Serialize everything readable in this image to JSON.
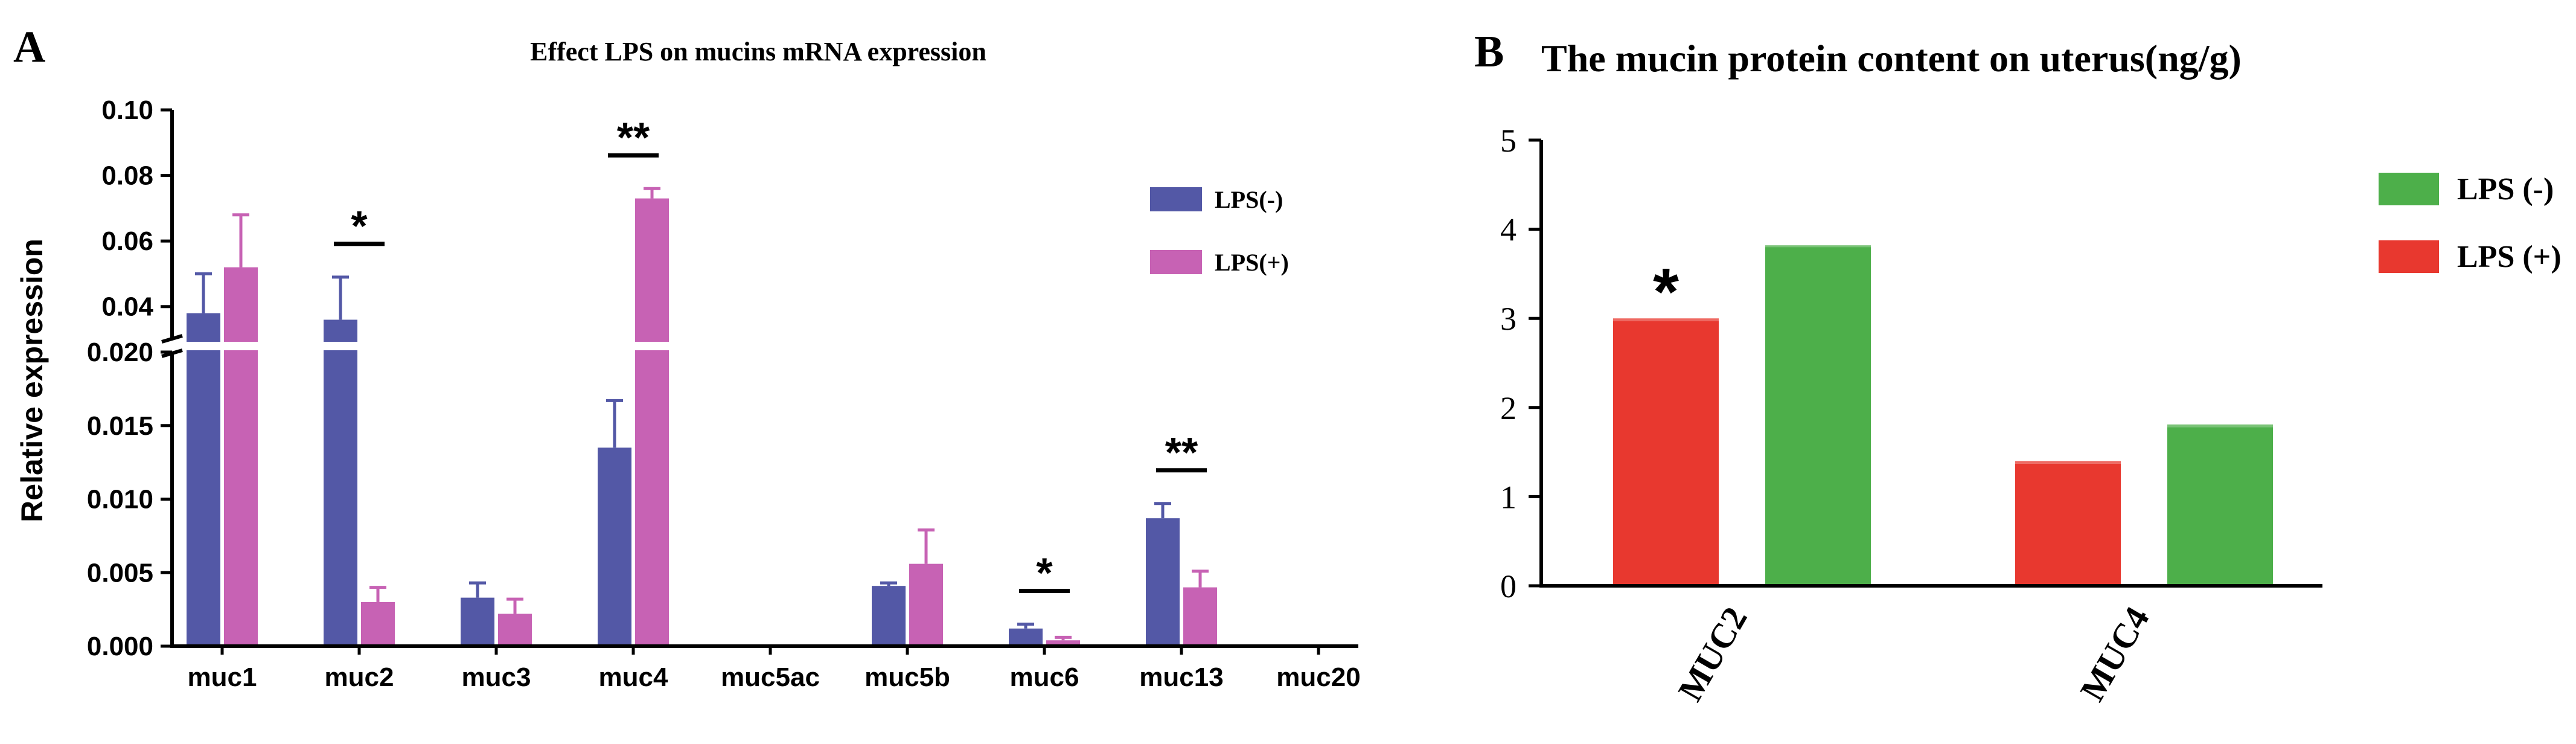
{
  "colors": {
    "lps_neg_a": "#5358a6",
    "lps_pos_a": "#c762b4",
    "lps_neg_b": "#4daf4a",
    "lps_pos_b": "#e8382f",
    "axis": "#000000"
  },
  "chart_data": [
    {
      "panel": "A",
      "type": "bar",
      "title": "Effect LPS on mucins mRNA expression",
      "xlabel": "",
      "ylabel": "Relative expression",
      "categories": [
        "muc1",
        "muc2",
        "muc3",
        "muc4",
        "muc5ac",
        "muc5b",
        "muc6",
        "muc13",
        "muc20"
      ],
      "series": [
        {
          "name": "LPS(-)",
          "values": [
            0.038,
            0.036,
            0.0033,
            0.0135,
            0.0001,
            0.0041,
            0.0012,
            0.0087,
            0.0001
          ],
          "errors": [
            0.012,
            0.013,
            0.001,
            0.0032,
            0.0,
            0.0002,
            0.0003,
            0.001,
            0.0
          ]
        },
        {
          "name": "LPS(+)",
          "values": [
            0.052,
            0.003,
            0.0022,
            0.073,
            0.0001,
            0.0056,
            0.0004,
            0.004,
            0.0001
          ],
          "errors": [
            0.016,
            0.001,
            0.001,
            0.003,
            0.0,
            0.0023,
            0.0002,
            0.0011,
            0.0
          ]
        }
      ],
      "axis_break": {
        "lower_range": [
          0.0,
          0.02
        ],
        "upper_range": [
          0.03,
          0.1
        ]
      },
      "ticks_lower": [
        "0.000",
        "0.005",
        "0.010",
        "0.015",
        "0.020"
      ],
      "ticks_lower_values": [
        0.0,
        0.005,
        0.01,
        0.015,
        0.02
      ],
      "ticks_upper": [
        "0.04",
        "0.06",
        "0.08",
        "0.10"
      ],
      "ticks_upper_values": [
        0.04,
        0.06,
        0.08,
        0.1
      ],
      "significance": [
        {
          "category": "muc2",
          "label": "*"
        },
        {
          "category": "muc4",
          "label": "**"
        },
        {
          "category": "muc6",
          "label": "*"
        },
        {
          "category": "muc13",
          "label": "**"
        }
      ],
      "legend": [
        "LPS(-)",
        "LPS(+)"
      ],
      "legend_position": "top-right"
    },
    {
      "panel": "B",
      "type": "bar",
      "title": "The mucin protein content on uterus(ng/g)",
      "xlabel": "",
      "ylabel": "",
      "categories": [
        "MUC2",
        "MUC4"
      ],
      "series": [
        {
          "name": "LPS (+)",
          "values": [
            2.97,
            1.37
          ],
          "errors": [
            0.03,
            0.03
          ]
        },
        {
          "name": "LPS (-)",
          "values": [
            3.8,
            1.78
          ],
          "errors": [
            0.02,
            0.03
          ]
        }
      ],
      "ylim": [
        0,
        5
      ],
      "ticks": [
        "0",
        "1",
        "2",
        "3",
        "4",
        "5"
      ],
      "tick_values": [
        0,
        1,
        2,
        3,
        4,
        5
      ],
      "significance": [
        {
          "category": "MUC2",
          "label": "*"
        }
      ],
      "legend": [
        "LPS (-)",
        "LPS (+)"
      ],
      "legend_position": "right"
    }
  ],
  "panels": {
    "a_label": "A",
    "b_label": "B"
  }
}
